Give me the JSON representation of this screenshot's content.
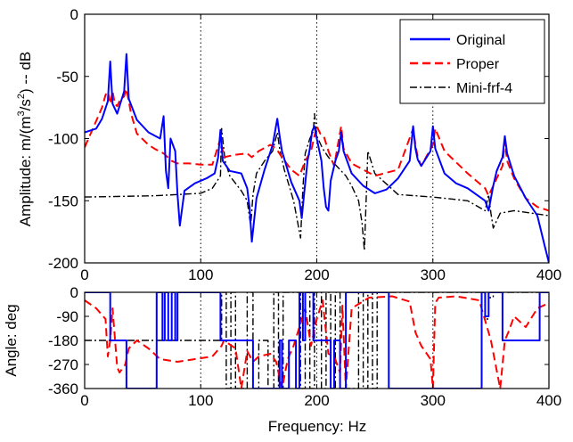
{
  "chart_data": [
    {
      "type": "line",
      "ylabel": "Amplitude: m/(m3/s2) -- dB",
      "xlim": [
        0,
        400
      ],
      "ylim": [
        -200,
        0
      ],
      "xticks": [
        "0",
        "100",
        "200",
        "300",
        "400"
      ],
      "yticks": [
        "0",
        "-50",
        "-100",
        "-150",
        "-200"
      ],
      "grid": "vertical dotted",
      "legend_position": "top-right",
      "series": [
        {
          "name": "Original",
          "color": "#0000ff",
          "style": "solid",
          "x": [
            0,
            10,
            15,
            20,
            22,
            24,
            28,
            34,
            36,
            38,
            45,
            55,
            65,
            68,
            70,
            72,
            74,
            78,
            80,
            82,
            86,
            95,
            105,
            112,
            115,
            117,
            119,
            125,
            135,
            140,
            142,
            144,
            148,
            155,
            162,
            166,
            168,
            170,
            178,
            185,
            187,
            189,
            192,
            194,
            196,
            198,
            200,
            204,
            206,
            208,
            210,
            212,
            216,
            219,
            221,
            223,
            230,
            240,
            250,
            260,
            270,
            280,
            283,
            285,
            287,
            290,
            298,
            300,
            302,
            310,
            320,
            330,
            345,
            348,
            350,
            352,
            355,
            360,
            362,
            364,
            370,
            380,
            390,
            396,
            400
          ],
          "y": [
            -95,
            -92,
            -84,
            -70,
            -38,
            -72,
            -80,
            -62,
            -32,
            -68,
            -85,
            -95,
            -100,
            -82,
            -126,
            -140,
            -100,
            -110,
            -145,
            -170,
            -142,
            -136,
            -132,
            -128,
            -115,
            -93,
            -118,
            -126,
            -128,
            -140,
            -155,
            -183,
            -148,
            -125,
            -105,
            -84,
            -98,
            -110,
            -135,
            -150,
            -164,
            -145,
            -118,
            -108,
            -94,
            -90,
            -100,
            -118,
            -140,
            -155,
            -158,
            -134,
            -118,
            -110,
            -95,
            -110,
            -128,
            -138,
            -144,
            -141,
            -132,
            -118,
            -90,
            -108,
            -117,
            -122,
            -110,
            -90,
            -108,
            -128,
            -136,
            -140,
            -150,
            -158,
            -148,
            -138,
            -126,
            -115,
            -98,
            -112,
            -130,
            -148,
            -162,
            -185,
            -200
          ]
        },
        {
          "name": "Proper",
          "color": "#ff0000",
          "style": "dashed",
          "x": [
            0,
            8,
            15,
            18,
            20,
            22,
            24,
            26,
            28,
            30,
            34,
            36,
            38,
            40,
            45,
            55,
            60,
            68,
            75,
            80,
            90,
            100,
            110,
            117,
            120,
            130,
            140,
            144,
            150,
            160,
            165,
            170,
            178,
            185,
            190,
            195,
            198,
            200,
            203,
            206,
            210,
            215,
            220,
            221,
            223,
            230,
            250,
            270,
            283,
            285,
            287,
            290,
            300,
            302,
            310,
            330,
            345,
            348,
            350,
            360,
            362,
            364,
            370,
            380,
            390,
            400
          ],
          "y": [
            -107,
            -90,
            -75,
            -65,
            -62,
            -72,
            -62,
            -72,
            -74,
            -70,
            -66,
            -60,
            -70,
            -80,
            -96,
            -105,
            -108,
            -112,
            -118,
            -120,
            -120,
            -121,
            -121,
            -100,
            -115,
            -113,
            -112,
            -115,
            -110,
            -105,
            -108,
            -115,
            -125,
            -130,
            -118,
            -110,
            -98,
            -90,
            -96,
            -98,
            -110,
            -122,
            -95,
            -90,
            -108,
            -120,
            -130,
            -125,
            -92,
            -105,
            -115,
            -122,
            -105,
            -92,
            -110,
            -128,
            -140,
            -146,
            -142,
            -122,
            -102,
            -118,
            -132,
            -148,
            -155,
            -158
          ]
        },
        {
          "name": "Mini-frf-4",
          "color": "#000000",
          "style": "dash-dot",
          "x": [
            0,
            60,
            100,
            110,
            117,
            118,
            121,
            125,
            135,
            140,
            143,
            145,
            148,
            155,
            162,
            166,
            168,
            172,
            180,
            186,
            188,
            190,
            194,
            197,
            198,
            200,
            205,
            210,
            215,
            220,
            225,
            230,
            236,
            239,
            241,
            244,
            250,
            270,
            300,
            330,
            345,
            348,
            350,
            352,
            358,
            370,
            400
          ],
          "y": [
            -147,
            -146,
            -144,
            -140,
            -130,
            -92,
            -118,
            -130,
            -142,
            -150,
            -170,
            -145,
            -128,
            -118,
            -110,
            -95,
            -108,
            -125,
            -150,
            -180,
            -140,
            -112,
            -100,
            -94,
            -80,
            -98,
            -108,
            -115,
            -120,
            -125,
            -130,
            -138,
            -150,
            -168,
            -190,
            -110,
            -128,
            -145,
            -147,
            -150,
            -158,
            -145,
            -160,
            -172,
            -160,
            -158,
            -162
          ]
        }
      ]
    },
    {
      "type": "line",
      "xlabel": "Frequency: Hz",
      "ylabel": "Angle: deg",
      "xlim": [
        0,
        400
      ],
      "ylim": [
        -360,
        0
      ],
      "xticks": [
        "0",
        "100",
        "200",
        "300",
        "400"
      ],
      "yticks": [
        "0",
        "-90",
        "-180",
        "-270",
        "-360"
      ],
      "grid": "vertical dotted",
      "series": [
        {
          "name": "Original",
          "color": "#0000ff",
          "style": "solid",
          "x": [
            0,
            22,
            22,
            36,
            36,
            62,
            62,
            67,
            67,
            69,
            69,
            72,
            72,
            75,
            75,
            78,
            78,
            80,
            80,
            117,
            117,
            145,
            145,
            168,
            168,
            170,
            170,
            176,
            176,
            182,
            182,
            185,
            185,
            188,
            188,
            190,
            190,
            197,
            197,
            212,
            212,
            215,
            215,
            220,
            220,
            225,
            225,
            262,
            262,
            300,
            300,
            342,
            342,
            345,
            345,
            348,
            348,
            360,
            360,
            364,
            364,
            392,
            392,
            400
          ],
          "y": [
            0,
            0,
            -180,
            -180,
            -360,
            -360,
            0,
            0,
            -180,
            -180,
            0,
            0,
            -180,
            -180,
            0,
            0,
            -180,
            -180,
            0,
            0,
            -180,
            -180,
            -360,
            -360,
            -180,
            -180,
            -360,
            -360,
            -180,
            -180,
            -360,
            -360,
            0,
            0,
            -180,
            -180,
            0,
            0,
            -180,
            -180,
            -360,
            -360,
            -180,
            -180,
            -360,
            -360,
            0,
            0,
            -360,
            -360,
            -360,
            -360,
            0,
            0,
            -90,
            -90,
            0,
            0,
            -180,
            -180,
            -180,
            -180,
            0,
            0
          ]
        },
        {
          "name": "Proper",
          "color": "#ff0000",
          "style": "dashed",
          "x": [
            0,
            10,
            18,
            20,
            22,
            24,
            26,
            28,
            30,
            35,
            38,
            45,
            55,
            65,
            80,
            95,
            110,
            118,
            120,
            130,
            135,
            140,
            145,
            150,
            160,
            165,
            170,
            175,
            180,
            190,
            195,
            200,
            205,
            210,
            215,
            220,
            222,
            225,
            230,
            245,
            265,
            280,
            285,
            288,
            290,
            298,
            300,
            302,
            305,
            320,
            340,
            350,
            358,
            362,
            365,
            370,
            380,
            390,
            400
          ],
          "y": [
            -30,
            -60,
            -100,
            -240,
            -180,
            -60,
            -170,
            -280,
            -300,
            -270,
            -210,
            -180,
            -210,
            -250,
            -260,
            -250,
            -240,
            -200,
            -180,
            -210,
            -360,
            -220,
            -260,
            -240,
            -230,
            -260,
            -360,
            -250,
            -200,
            -60,
            -200,
            -100,
            -30,
            -230,
            -240,
            -300,
            -50,
            -360,
            -60,
            -20,
            -15,
            -35,
            -150,
            -180,
            -200,
            -250,
            -360,
            -40,
            -20,
            -15,
            -30,
            -180,
            -360,
            -180,
            -150,
            -90,
            -130,
            -60,
            -40
          ]
        },
        {
          "name": "Mini-frf-4",
          "color": "#000000",
          "style": "dash-dot",
          "x": [
            0,
            118,
            118,
            122,
            122,
            126,
            126,
            130,
            130,
            140,
            140,
            145,
            145,
            150,
            150,
            158,
            158,
            163,
            163,
            167,
            167,
            171,
            171,
            186,
            186,
            190,
            190,
            194,
            194,
            198,
            198,
            204,
            204,
            208,
            208,
            212,
            212,
            216,
            216,
            220,
            220,
            236,
            236,
            240,
            240,
            244,
            244,
            248,
            248,
            252,
            252,
            320,
            320,
            345,
            345,
            348,
            348,
            352,
            352,
            370,
            400
          ],
          "y": [
            -180,
            -180,
            0,
            0,
            -360,
            -360,
            0,
            0,
            -360,
            -360,
            0,
            0,
            -360,
            -360,
            -180,
            -180,
            -360,
            -360,
            0,
            0,
            -360,
            -360,
            0,
            0,
            -360,
            -360,
            0,
            0,
            -360,
            -360,
            0,
            0,
            -360,
            -360,
            0,
            0,
            -360,
            -360,
            0,
            0,
            -360,
            -360,
            0,
            0,
            -360,
            -360,
            0,
            0,
            -360,
            -360,
            0,
            0,
            0,
            0,
            -100,
            -100,
            -20,
            -20,
            0,
            0,
            0
          ]
        }
      ]
    }
  ]
}
